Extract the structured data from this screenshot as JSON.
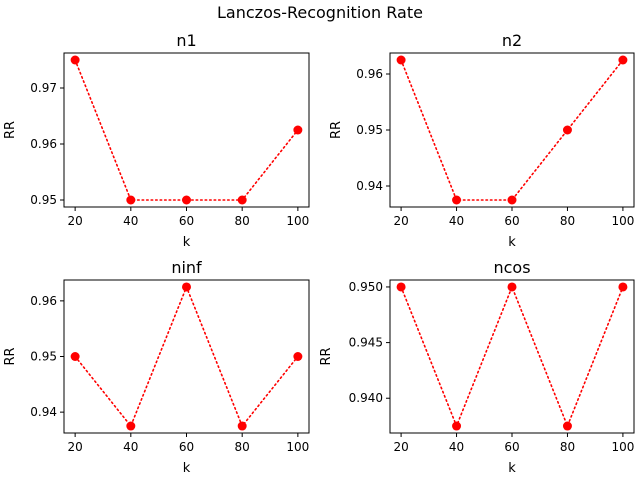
{
  "chart_data": {
    "suptitle": "Lanczos-Recognition Rate",
    "panels": [
      {
        "type": "line",
        "title": "n1",
        "xlabel": "k",
        "ylabel": "RR",
        "x": [
          20,
          40,
          60,
          80,
          100
        ],
        "y": [
          0.975,
          0.95,
          0.95,
          0.95,
          0.9625
        ],
        "xticks": [
          "20",
          "40",
          "60",
          "80",
          "100"
        ],
        "yticks": [
          0.95,
          0.96,
          0.97
        ],
        "ytick_labels": [
          "0.95",
          "0.96",
          "0.97"
        ],
        "xlim": [
          16,
          104
        ],
        "ylim": [
          0.94875,
          0.97625
        ],
        "line_style": "dotted",
        "marker": "circle",
        "color": "#ff0000",
        "grid": false
      },
      {
        "type": "line",
        "title": "n2",
        "xlabel": "k",
        "ylabel": "RR",
        "x": [
          20,
          40,
          60,
          80,
          100
        ],
        "y": [
          0.9625,
          0.9375,
          0.9375,
          0.95,
          0.9625
        ],
        "xticks": [
          "20",
          "40",
          "60",
          "80",
          "100"
        ],
        "yticks": [
          0.94,
          0.95,
          0.96
        ],
        "ytick_labels": [
          "0.94",
          "0.95",
          "0.96"
        ],
        "xlim": [
          16,
          104
        ],
        "ylim": [
          0.93625,
          0.96375
        ],
        "line_style": "dotted",
        "marker": "circle",
        "color": "#ff0000",
        "grid": false
      },
      {
        "type": "line",
        "title": "ninf",
        "xlabel": "k",
        "ylabel": "RR",
        "x": [
          20,
          40,
          60,
          80,
          100
        ],
        "y": [
          0.95,
          0.9375,
          0.9625,
          0.9375,
          0.95
        ],
        "xticks": [
          "20",
          "40",
          "60",
          "80",
          "100"
        ],
        "yticks": [
          0.94,
          0.95,
          0.96
        ],
        "ytick_labels": [
          "0.94",
          "0.95",
          "0.96"
        ],
        "xlim": [
          16,
          104
        ],
        "ylim": [
          0.93625,
          0.96375
        ],
        "line_style": "dotted",
        "marker": "circle",
        "color": "#ff0000",
        "grid": false
      },
      {
        "type": "line",
        "title": "ncos",
        "xlabel": "k",
        "ylabel": "RR",
        "x": [
          20,
          40,
          60,
          80,
          100
        ],
        "y": [
          0.95,
          0.9375,
          0.95,
          0.9375,
          0.95
        ],
        "xticks": [
          "20",
          "40",
          "60",
          "80",
          "100"
        ],
        "yticks": [
          0.94,
          0.945,
          0.95
        ],
        "ytick_labels": [
          "0.940",
          "0.945",
          "0.950"
        ],
        "xlim": [
          16,
          104
        ],
        "ylim": [
          0.936875,
          0.950625
        ],
        "line_style": "dotted",
        "marker": "circle",
        "color": "#ff0000",
        "grid": false
      }
    ]
  }
}
